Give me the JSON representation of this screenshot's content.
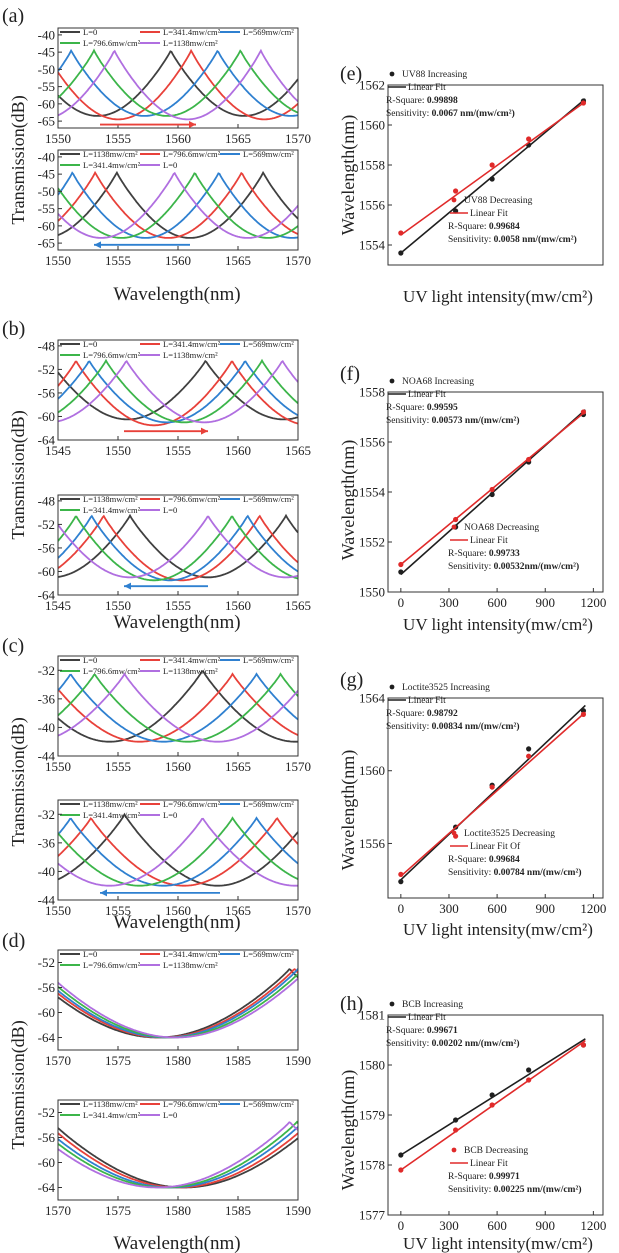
{
  "figure": {
    "panel_tags": [
      "(a)",
      "(b)",
      "(c)",
      "(d)",
      "(e)",
      "(f)",
      "(g)",
      "(h)"
    ],
    "spectrum_ylabel": "Transmission(dB)",
    "spectrum_xlabel": "Wavelength(nm)",
    "fit_ylabel": "Wavelength(nm)",
    "fit_xlabel": "UV light intensity(mw/cm²)"
  },
  "colors": {
    "L0": "#404040",
    "L341": "#e8413a",
    "L569": "#2f80d0",
    "L796": "#3cb54a",
    "L1138": "#b06fe0",
    "increasing": "#1f1f1f",
    "decreasing": "#e02a2a"
  },
  "chart_data": [
    {
      "type": "line",
      "panel": "(a)",
      "part": "top",
      "xlabel": "Wavelength(nm)",
      "ylabel": "Transmission(dB)",
      "xlim": [
        1550,
        1570
      ],
      "ylim": [
        -67,
        -38
      ],
      "xticks": [
        1550,
        1555,
        1560,
        1565,
        1570
      ],
      "yticks": [
        -40,
        -45,
        -50,
        -55,
        -60,
        -65
      ],
      "legend": [
        "L=0",
        "L=341.4mw/cm²",
        "L=569mw/cm²",
        "L=796.6mw/cm²",
        "L=1138mw/cm²"
      ],
      "series": [
        {
          "name": "L=0",
          "color_key": "L0",
          "dip": 1553.3,
          "fsr": 12.2,
          "min": -63.5,
          "max": -44.5
        },
        {
          "name": "L=341.4mw/cm²",
          "color_key": "L341",
          "dip": 1555.0,
          "fsr": 12.2,
          "min": -64.5,
          "max": -44.5
        },
        {
          "name": "L=569mw/cm²",
          "color_key": "L569",
          "dip": 1557.2,
          "fsr": 12.2,
          "min": -63.5,
          "max": -44.5
        },
        {
          "name": "L=796.6mw/cm²",
          "color_key": "L796",
          "dip": 1559.1,
          "fsr": 12.2,
          "min": -63.5,
          "max": -44.5
        },
        {
          "name": "L=1138mw/cm²",
          "color_key": "L1138",
          "dip": 1560.8,
          "fsr": 12.2,
          "min": -64.5,
          "max": -44.5
        }
      ],
      "arrow": {
        "from": 1553.5,
        "to": 1561.5,
        "y": -66,
        "color_key": "L341"
      }
    },
    {
      "type": "line",
      "panel": "(a)",
      "part": "bottom",
      "xlabel": "Wavelength(nm)",
      "ylabel": "Transmission(dB)",
      "xlim": [
        1550,
        1570
      ],
      "ylim": [
        -67,
        -38
      ],
      "xticks": [
        1550,
        1555,
        1560,
        1565,
        1570
      ],
      "yticks": [
        -40,
        -45,
        -50,
        -55,
        -60,
        -65
      ],
      "legend": [
        "L=1138mw/cm²",
        "L=796.6mw/cm²",
        "L=569mw/cm²",
        "L=341.4mw/cm²",
        "L=0"
      ],
      "series": [
        {
          "name": "L=1138mw/cm²",
          "color_key": "L0",
          "dip": 1561.0,
          "fsr": 12.2,
          "min": -63.5,
          "max": -44.5
        },
        {
          "name": "L=796.6mw/cm²",
          "color_key": "L341",
          "dip": 1559.2,
          "fsr": 12.2,
          "min": -63.5,
          "max": -44.5
        },
        {
          "name": "L=569mw/cm²",
          "color_key": "L569",
          "dip": 1557.3,
          "fsr": 12.2,
          "min": -63.5,
          "max": -44.5
        },
        {
          "name": "L=341.4mw/cm²",
          "color_key": "L796",
          "dip": 1555.3,
          "fsr": 12.2,
          "min": -63.5,
          "max": -44.5
        },
        {
          "name": "L=0",
          "color_key": "L1138",
          "dip": 1553.6,
          "fsr": 12.2,
          "min": -63.5,
          "max": -44.5
        }
      ],
      "arrow": {
        "from": 1561.0,
        "to": 1553.0,
        "y": -65.5,
        "color_key": "L569"
      }
    },
    {
      "type": "line",
      "panel": "(b)",
      "part": "top",
      "xlabel": "Wavelength(nm)",
      "ylabel": "Transmission(dB)",
      "xlim": [
        1545,
        1565
      ],
      "ylim": [
        -64,
        -47
      ],
      "xticks": [
        1545,
        1550,
        1555,
        1560,
        1565
      ],
      "yticks": [
        -48,
        -52,
        -56,
        -60,
        -64
      ],
      "legend": [
        "L=0",
        "L=341.4mw/cm²",
        "L=569mw/cm²",
        "L=796.6mw/cm²",
        "L=1138mw/cm²"
      ],
      "series": [
        {
          "name": "L=0",
          "color_key": "L0",
          "dip": 1550.8,
          "fsr": 13,
          "min": -60.5,
          "max": -50.5
        },
        {
          "name": "L=341.4mw/cm²",
          "color_key": "L341",
          "dip": 1553.0,
          "fsr": 13,
          "min": -61.5,
          "max": -50.5
        },
        {
          "name": "L=569mw/cm²",
          "color_key": "L569",
          "dip": 1554.1,
          "fsr": 13,
          "min": -61,
          "max": -50.5
        },
        {
          "name": "L=796.6mw/cm²",
          "color_key": "L796",
          "dip": 1555.5,
          "fsr": 13,
          "min": -61,
          "max": -50.5
        },
        {
          "name": "L=1138mw/cm²",
          "color_key": "L1138",
          "dip": 1557.2,
          "fsr": 13,
          "min": -61,
          "max": -50.5
        }
      ],
      "arrow": {
        "from": 1550.5,
        "to": 1557.5,
        "y": -62.5,
        "color_key": "L341"
      }
    },
    {
      "type": "line",
      "panel": "(b)",
      "part": "bottom",
      "xlabel": "Wavelength(nm)",
      "ylabel": "Transmission(dB)",
      "xlim": [
        1545,
        1565
      ],
      "ylim": [
        -64,
        -47
      ],
      "xticks": [
        1545,
        1550,
        1555,
        1560,
        1565
      ],
      "yticks": [
        -48,
        -52,
        -56,
        -60,
        -64
      ],
      "legend": [
        "L=1138mw/cm²",
        "L=796.6mw/cm²",
        "L=569mw/cm²",
        "L=341.4mw/cm²",
        "L=0"
      ],
      "series": [
        {
          "name": "L=1138mw/cm²",
          "color_key": "L0",
          "dip": 1557.5,
          "fsr": 13,
          "min": -61,
          "max": -50.5
        },
        {
          "name": "L=796.6mw/cm²",
          "color_key": "L341",
          "dip": 1555.3,
          "fsr": 13,
          "min": -61.5,
          "max": -50.5
        },
        {
          "name": "L=569mw/cm²",
          "color_key": "L569",
          "dip": 1554.3,
          "fsr": 13,
          "min": -61.5,
          "max": -50.5
        },
        {
          "name": "L=341.4mw/cm²",
          "color_key": "L796",
          "dip": 1553.0,
          "fsr": 13,
          "min": -61.5,
          "max": -50.5
        },
        {
          "name": "L=0",
          "color_key": "L1138",
          "dip": 1551.0,
          "fsr": 13,
          "min": -61,
          "max": -50.5
        }
      ],
      "arrow": {
        "from": 1557.5,
        "to": 1550.5,
        "y": -62.5,
        "color_key": "L569"
      }
    },
    {
      "type": "line",
      "panel": "(c)",
      "part": "top",
      "xlabel": "Wavelength(nm)",
      "ylabel": "Transmission(dB)",
      "xlim": [
        1550,
        1570
      ],
      "ylim": [
        -44,
        -30
      ],
      "xticks": [
        1550,
        1555,
        1560,
        1565,
        1570
      ],
      "yticks": [
        -32,
        -36,
        -40,
        -44
      ],
      "legend": [
        "L=0",
        "L=341.4mw/cm²",
        "L=569mw/cm²",
        "L=796.6mw/cm²",
        "L=1138mw/cm²"
      ],
      "series": [
        {
          "name": "L=0",
          "color_key": "L0",
          "dip": 1554.3,
          "fsr": 15.5,
          "min": -42,
          "max": -32
        },
        {
          "name": "L=341.4mw/cm²",
          "color_key": "L341",
          "dip": 1556.8,
          "fsr": 15.5,
          "min": -42,
          "max": -32.5
        },
        {
          "name": "L=569mw/cm²",
          "color_key": "L569",
          "dip": 1558.8,
          "fsr": 15.5,
          "min": -42,
          "max": -32.5
        },
        {
          "name": "L=796.6mw/cm²",
          "color_key": "L796",
          "dip": 1560.8,
          "fsr": 15.5,
          "min": -42,
          "max": -32.5
        },
        {
          "name": "L=1138mw/cm²",
          "color_key": "L1138",
          "dip": 1563.3,
          "fsr": 15.5,
          "min": -42,
          "max": -32.5
        }
      ]
    },
    {
      "type": "line",
      "panel": "(c)",
      "part": "bottom",
      "xlabel": "Wavelength(nm)",
      "ylabel": "Transmission(dB)",
      "xlim": [
        1550,
        1570
      ],
      "ylim": [
        -44,
        -30
      ],
      "xticks": [
        1550,
        1555,
        1560,
        1565,
        1570
      ],
      "yticks": [
        -32,
        -36,
        -40,
        -44
      ],
      "legend": [
        "L=1138mw/cm²",
        "L=796.6mw/cm²",
        "L=569mw/cm²",
        "L=341.4mw/cm²",
        "L=0"
      ],
      "series": [
        {
          "name": "L=1138mw/cm²",
          "color_key": "L0",
          "dip": 1563.3,
          "fsr": 15.5,
          "min": -42,
          "max": -32
        },
        {
          "name": "L=796.6mw/cm²",
          "color_key": "L341",
          "dip": 1560.5,
          "fsr": 15.5,
          "min": -42,
          "max": -32.5
        },
        {
          "name": "L=569mw/cm²",
          "color_key": "L569",
          "dip": 1558.8,
          "fsr": 15.5,
          "min": -42,
          "max": -32.5
        },
        {
          "name": "L=341.4mw/cm²",
          "color_key": "L796",
          "dip": 1556.8,
          "fsr": 15.5,
          "min": -42,
          "max": -32.5
        },
        {
          "name": "L=0",
          "color_key": "L1138",
          "dip": 1554.3,
          "fsr": 15.5,
          "min": -42,
          "max": -32.5
        }
      ],
      "arrow": {
        "from": 1563.5,
        "to": 1553.5,
        "y": -43,
        "color_key": "L569"
      }
    },
    {
      "type": "line",
      "panel": "(d)",
      "part": "top",
      "xlabel": "Wavelength(nm)",
      "ylabel": "Transmission(dB)",
      "xlim": [
        1570,
        1590
      ],
      "ylim": [
        -66,
        -50
      ],
      "xticks": [
        1570,
        1575,
        1580,
        1585,
        1590
      ],
      "yticks": [
        -52,
        -56,
        -60,
        -64
      ],
      "legend": [
        "L=0",
        "L=341.4mw/cm²",
        "L=569mw/cm²",
        "L=796.6mw/cm²",
        "L=1138mw/cm²"
      ],
      "series": [
        {
          "name": "L=0",
          "color_key": "L0",
          "dip": 1578.3,
          "fsr": 22,
          "min": -64,
          "max": -53
        },
        {
          "name": "L=341.4mw/cm²",
          "color_key": "L341",
          "dip": 1578.7,
          "fsr": 22,
          "min": -64,
          "max": -53
        },
        {
          "name": "L=569mw/cm²",
          "color_key": "L569",
          "dip": 1579.0,
          "fsr": 22,
          "min": -64,
          "max": -53
        },
        {
          "name": "L=796.6mw/cm²",
          "color_key": "L796",
          "dip": 1579.4,
          "fsr": 22,
          "min": -64,
          "max": -53
        },
        {
          "name": "L=1138mw/cm²",
          "color_key": "L1138",
          "dip": 1579.8,
          "fsr": 22,
          "min": -64,
          "max": -53
        }
      ]
    },
    {
      "type": "line",
      "panel": "(d)",
      "part": "bottom",
      "xlabel": "Wavelength(nm)",
      "ylabel": "Transmission(dB)",
      "xlim": [
        1570,
        1590
      ],
      "ylim": [
        -66,
        -50
      ],
      "xticks": [
        1570,
        1575,
        1580,
        1585,
        1590
      ],
      "yticks": [
        -52,
        -56,
        -60,
        -64
      ],
      "legend": [
        "L=1138mw/cm²",
        "L=796.6mw/cm²",
        "L=569mw/cm²",
        "L=341.4mw/cm²",
        "L=0"
      ],
      "series": [
        {
          "name": "L=1138mw/cm²",
          "color_key": "L0",
          "dip": 1580.5,
          "fsr": 22,
          "min": -64,
          "max": -53.5
        },
        {
          "name": "L=796.6mw/cm²",
          "color_key": "L341",
          "dip": 1580.0,
          "fsr": 22,
          "min": -64,
          "max": -53.5
        },
        {
          "name": "L=569mw/cm²",
          "color_key": "L569",
          "dip": 1579.4,
          "fsr": 22,
          "min": -64,
          "max": -53.5
        },
        {
          "name": "L=341.4mw/cm²",
          "color_key": "L796",
          "dip": 1578.9,
          "fsr": 22,
          "min": -64,
          "max": -53.5
        },
        {
          "name": "L=0",
          "color_key": "L1138",
          "dip": 1578.3,
          "fsr": 22,
          "min": -64,
          "max": -53.5
        }
      ]
    },
    {
      "type": "scatter",
      "panel": "(e)",
      "xlabel": "UV light intensity(mw/cm²)",
      "ylabel": "Wavelength(nm)",
      "xlim": [
        -80,
        1260
      ],
      "ylim": [
        1553,
        1562
      ],
      "xticks": [],
      "yticks": [
        1554,
        1556,
        1558,
        1560,
        1562
      ],
      "series": [
        {
          "name": "UV88 Increasing",
          "color_key": "increasing",
          "x": [
            0,
            341.4,
            569,
            796.6,
            1138
          ],
          "y": [
            1553.6,
            1555.7,
            1557.3,
            1559.0,
            1561.2
          ],
          "fit_name": "Linear Fit",
          "fit": [
            0.0067,
            1553.6
          ],
          "r2_label": "R-Square:",
          "r2": "0.99898",
          "sens_label": "Sensitivity:",
          "sens": "0.0067 nm/(mw/cm²)"
        },
        {
          "name": "UV88 Decreasing",
          "color_key": "decreasing",
          "x": [
            0,
            341.4,
            569,
            796.6,
            1138
          ],
          "y": [
            1554.6,
            1556.7,
            1558.0,
            1559.3,
            1561.1
          ],
          "fit_name": "Linear Fit",
          "fit": [
            0.0058,
            1554.5
          ],
          "r2_label": "R-Square:",
          "r2": "0.99684",
          "sens_label": "Sensitivity:",
          "sens": "0.0058 nm/(mw/cm²)"
        }
      ]
    },
    {
      "type": "scatter",
      "panel": "(f)",
      "xlabel": "UV light intensity(mw/cm²)",
      "ylabel": "Wavelength(nm)",
      "xlim": [
        -80,
        1260
      ],
      "ylim": [
        1550,
        1558
      ],
      "xticks": [
        0,
        300,
        600,
        900,
        1200
      ],
      "yticks": [
        1550,
        1552,
        1554,
        1556,
        1558
      ],
      "series": [
        {
          "name": "NOA68 Increasing",
          "color_key": "increasing",
          "x": [
            0,
            341.4,
            569,
            796.6,
            1138
          ],
          "y": [
            1550.8,
            1552.6,
            1553.9,
            1555.2,
            1557.1
          ],
          "fit_name": "Linear Fit",
          "fit": [
            0.00573,
            1550.7
          ],
          "r2_label": "R-Square:",
          "r2": "0.99595",
          "sens_label": "Sensitivity:",
          "sens": "0.00573 nm/(mw/cm²)"
        },
        {
          "name": "NOA68 Decreasing",
          "color_key": "decreasing",
          "x": [
            0,
            341.4,
            569,
            796.6,
            1138
          ],
          "y": [
            1551.1,
            1552.9,
            1554.1,
            1555.3,
            1557.2
          ],
          "fit_name": "Linear Fit",
          "fit": [
            0.00532,
            1551.1
          ],
          "r2_label": "R-Square:",
          "r2": "0.99733",
          "sens_label": "Sensitivity:",
          "sens": "0.00532nm/(mw/cm²)"
        }
      ]
    },
    {
      "type": "scatter",
      "panel": "(g)",
      "xlabel": "UV light intensity(mw/cm²)",
      "ylabel": "Wavelength(nm)",
      "xlim": [
        -80,
        1260
      ],
      "ylim": [
        1553,
        1564
      ],
      "xticks": [
        0,
        300,
        600,
        900,
        1200
      ],
      "yticks": [
        1556,
        1560,
        1564
      ],
      "series": [
        {
          "name": "Loctite3525 Increasing",
          "color_key": "increasing",
          "x": [
            0,
            341.4,
            569,
            796.6,
            1138
          ],
          "y": [
            1553.9,
            1556.9,
            1559.2,
            1561.2,
            1563.3
          ],
          "fit_name": "Linear Fit",
          "fit": [
            0.00834,
            1554.0
          ],
          "r2_label": "R-Square:",
          "r2": "0.98792",
          "sens_label": "Sensitivity:",
          "sens": "0.00834 nm/(mw/cm²)"
        },
        {
          "name": "Loctite3525 Decreasing",
          "color_key": "decreasing",
          "x": [
            0,
            341.4,
            569,
            796.6,
            1138
          ],
          "y": [
            1554.3,
            1556.4,
            1559.1,
            1560.8,
            1563.1
          ],
          "fit_name": "Linear Fit Of",
          "fit": [
            0.00784,
            1554.2
          ],
          "r2_label": "R-Square:",
          "r2": "0.99684",
          "sens_label": "Sensitivity:",
          "sens": "0.00784 nm/(mw/cm²)"
        }
      ]
    },
    {
      "type": "scatter",
      "panel": "(h)",
      "xlabel": "UV light intensity(mw/cm²)",
      "ylabel": "Wavelength(nm)",
      "xlim": [
        -80,
        1260
      ],
      "ylim": [
        1577,
        1581
      ],
      "xticks": [
        0,
        300,
        600,
        900,
        1200
      ],
      "yticks": [
        1577,
        1578,
        1579,
        1580,
        1581
      ],
      "series": [
        {
          "name": "BCB Increasing",
          "color_key": "increasing",
          "x": [
            0,
            341.4,
            569,
            796.6,
            1138
          ],
          "y": [
            1578.2,
            1578.9,
            1579.4,
            1579.9,
            1580.4
          ],
          "fit_name": "Linear Fit",
          "fit": [
            0.00202,
            1578.2
          ],
          "r2_label": "R-Square:",
          "r2": "0.99671",
          "sens_label": "Sensitivity:",
          "sens": "0.00202 nm/(mw/cm²)"
        },
        {
          "name": "BCB Decreasing",
          "color_key": "decreasing",
          "x": [
            0,
            341.4,
            569,
            796.6,
            1138
          ],
          "y": [
            1577.9,
            1578.7,
            1579.2,
            1579.7,
            1580.4
          ],
          "fit_name": "Linear Fit",
          "fit": [
            0.00225,
            1577.9
          ],
          "r2_label": "R-Square:",
          "r2": "0.99971",
          "sens_label": "Sensitivity:",
          "sens": "0.00225 nm/(mw/cm²)"
        }
      ]
    }
  ]
}
